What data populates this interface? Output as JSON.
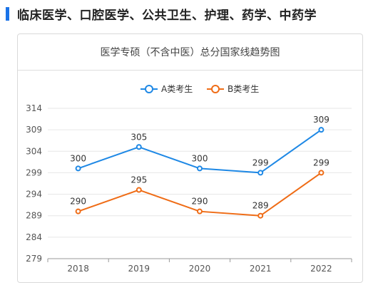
{
  "section": {
    "title": "临床医学、口腔医学、公共卫生、护理、药学、中药学"
  },
  "colors": {
    "accent": "#1a73e8",
    "series_a": "#1e88e5",
    "series_b": "#ef6c16",
    "grid": "#e6e6e6",
    "axis_text": "#555555"
  },
  "chart_data": {
    "type": "line",
    "title": "医学专硕（不含中医）总分国家线趋势图",
    "categories": [
      "2018",
      "2019",
      "2020",
      "2021",
      "2022"
    ],
    "series": [
      {
        "name": "A类考生",
        "color": "#1e88e5",
        "values": [
          300,
          305,
          300,
          299,
          309
        ]
      },
      {
        "name": "B类考生",
        "color": "#ef6c16",
        "values": [
          290,
          295,
          290,
          289,
          299
        ]
      }
    ],
    "yticks": [
      279,
      284,
      289,
      294,
      299,
      304,
      309,
      314
    ],
    "ylim": [
      279,
      314
    ],
    "grid": true,
    "legend": "top-center",
    "xlabel": "",
    "ylabel": ""
  }
}
